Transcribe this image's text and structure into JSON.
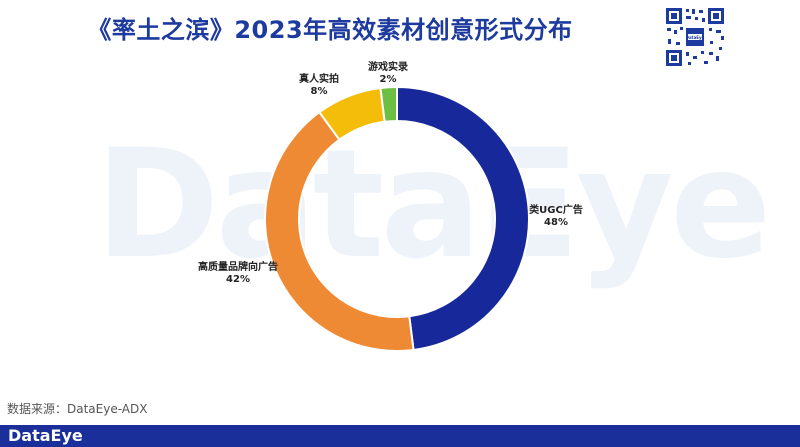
{
  "chart_data": {
    "type": "pie",
    "title": "《率土之滨》2023年高效素材创意形式分布",
    "slices": [
      {
        "name": "类UGC广告",
        "value": 48,
        "label": "48%",
        "color": "#17289a"
      },
      {
        "name": "高质量品牌向广告",
        "value": 42,
        "label": "42%",
        "color": "#ef8a34"
      },
      {
        "name": "真人实拍",
        "value": 8,
        "label": "8%",
        "color": "#f4bd0a"
      },
      {
        "name": "游戏实录",
        "value": 2,
        "label": "2%",
        "color": "#6cbf43"
      }
    ]
  },
  "watermark": "DataEye",
  "source": "数据来源：DataEye-ADX",
  "footer": {
    "logo": "DataEye",
    "color": "#1a2f9a"
  }
}
